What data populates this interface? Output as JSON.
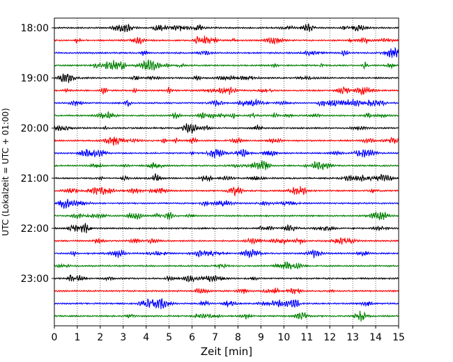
{
  "chart_data": {
    "type": "line",
    "xlabel": "Zeit  [min]",
    "ylabel": "UTC (Lokalzeit = UTC + 01:00)",
    "xlim": [
      0,
      15
    ],
    "x_ticks": [
      0,
      1,
      2,
      3,
      4,
      5,
      6,
      7,
      8,
      9,
      10,
      11,
      12,
      13,
      14,
      15
    ],
    "y_ticks": [
      "18:00",
      "19:00",
      "20:00",
      "21:00",
      "22:00",
      "23:00"
    ],
    "trace_interval_minutes": 15,
    "first_trace_start": "18:00",
    "last_trace_start": "23:45",
    "trace_count": 24,
    "trace_color_cycle": [
      "#000000",
      "#ff0000",
      "#0000ff",
      "#008000"
    ],
    "grid_x": "dotted",
    "grid_y": false
  }
}
